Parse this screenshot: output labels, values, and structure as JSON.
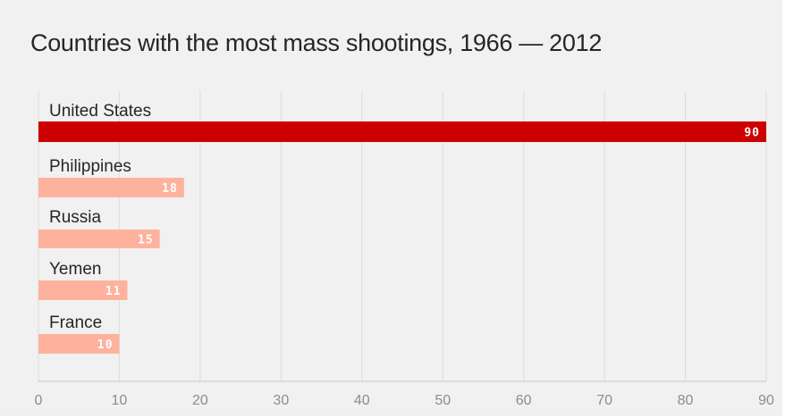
{
  "chart_data": {
    "type": "bar",
    "orientation": "horizontal",
    "title": "Countries with the most mass shootings, 1966 — 2012",
    "categories": [
      "United States",
      "Philippines",
      "Russia",
      "Yemen",
      "France"
    ],
    "values": [
      90,
      18,
      15,
      11,
      10
    ],
    "xlim": [
      0,
      90
    ],
    "xticks": [
      0,
      10,
      20,
      30,
      40,
      50,
      60,
      70,
      80,
      90
    ],
    "grid": true,
    "colors": {
      "highlight": "#cc0000",
      "bar": "#feb29d",
      "grid": "#dcdcdc",
      "axis": "#c8c8c8",
      "background": "#f2f1f2",
      "title": "#262626",
      "tick_text": "#8c8c8c"
    }
  }
}
